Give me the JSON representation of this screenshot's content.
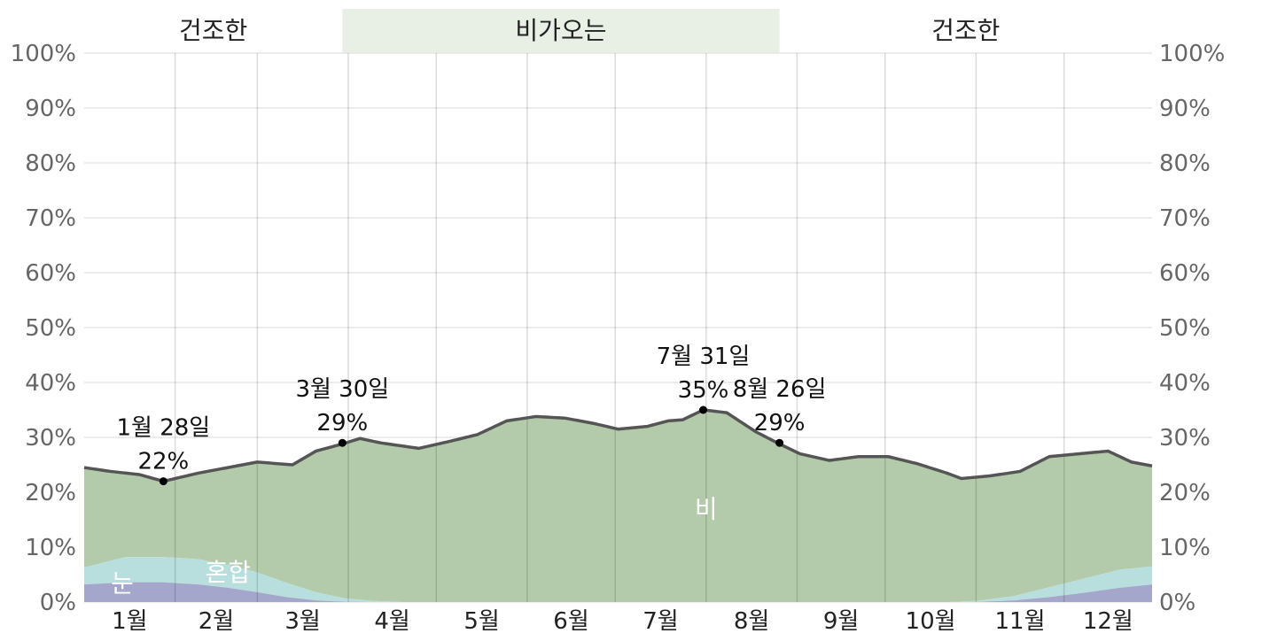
{
  "chart_data": {
    "type": "area",
    "title": "",
    "xlabel": "",
    "ylabel": "",
    "ylim": [
      0,
      100
    ],
    "y_ticks": [
      "0%",
      "10%",
      "20%",
      "30%",
      "40%",
      "50%",
      "60%",
      "70%",
      "80%",
      "90%",
      "100%"
    ],
    "x_ticks": [
      "1월",
      "2월",
      "3월",
      "4월",
      "5월",
      "6월",
      "7월",
      "8월",
      "9월",
      "10월",
      "11월",
      "12월"
    ],
    "grid": true,
    "seasons": [
      {
        "label": "건조한",
        "start_day": 1,
        "end_day": 89,
        "rainy": false
      },
      {
        "label": "비가오는",
        "start_day": 89,
        "end_day": 238,
        "rainy": true
      },
      {
        "label": "건조한",
        "start_day": 238,
        "end_day": 365,
        "rainy": false
      }
    ],
    "series": [
      {
        "name": "눈",
        "color": "#a4a6cc",
        "points": [
          [
            1,
            3.2
          ],
          [
            15,
            3.6
          ],
          [
            28,
            3.6
          ],
          [
            40,
            3.2
          ],
          [
            50,
            2.6
          ],
          [
            60,
            1.8
          ],
          [
            70,
            0.9
          ],
          [
            80,
            0.3
          ],
          [
            90,
            0.05
          ],
          [
            100,
            0
          ],
          [
            305,
            0
          ],
          [
            318,
            0.3
          ],
          [
            330,
            0.9
          ],
          [
            342,
            1.7
          ],
          [
            354,
            2.6
          ],
          [
            365,
            3.2
          ]
        ]
      },
      {
        "name": "혼합",
        "color": "#b8dfdd",
        "points": [
          [
            1,
            3.1
          ],
          [
            15,
            4.6
          ],
          [
            28,
            4.6
          ],
          [
            40,
            4.6
          ],
          [
            50,
            4.2
          ],
          [
            60,
            3.6
          ],
          [
            70,
            2.6
          ],
          [
            80,
            1.5
          ],
          [
            90,
            0.6
          ],
          [
            100,
            0.2
          ],
          [
            110,
            0
          ],
          [
            295,
            0
          ],
          [
            305,
            0.2
          ],
          [
            318,
            0.8
          ],
          [
            330,
            1.8
          ],
          [
            342,
            2.6
          ],
          [
            354,
            3.3
          ],
          [
            365,
            3.3
          ]
        ]
      },
      {
        "name": "비",
        "color": "#b3cbab",
        "points": [
          [
            1,
            24.5
          ],
          [
            10,
            23.8
          ],
          [
            20,
            23.2
          ],
          [
            28,
            22.0
          ],
          [
            40,
            23.5
          ],
          [
            50,
            24.5
          ],
          [
            60,
            25.5
          ],
          [
            72,
            25.0
          ],
          [
            80,
            27.5
          ],
          [
            89,
            28.8
          ],
          [
            95,
            29.8
          ],
          [
            102,
            29.0
          ],
          [
            115,
            28.0
          ],
          [
            125,
            29.2
          ],
          [
            135,
            30.5
          ],
          [
            145,
            33.0
          ],
          [
            155,
            33.8
          ],
          [
            165,
            33.5
          ],
          [
            175,
            32.5
          ],
          [
            183,
            31.5
          ],
          [
            193,
            32.0
          ],
          [
            200,
            33.0
          ],
          [
            205,
            33.2
          ],
          [
            212,
            35.0
          ],
          [
            220,
            34.5
          ],
          [
            230,
            31.0
          ],
          [
            238,
            28.8
          ],
          [
            245,
            27.0
          ],
          [
            255,
            25.8
          ],
          [
            265,
            26.5
          ],
          [
            275,
            26.5
          ],
          [
            285,
            25.2
          ],
          [
            295,
            23.5
          ],
          [
            300,
            22.5
          ],
          [
            310,
            23.0
          ],
          [
            320,
            23.8
          ],
          [
            330,
            26.5
          ],
          [
            340,
            27.0
          ],
          [
            350,
            27.5
          ],
          [
            358,
            25.5
          ],
          [
            365,
            24.8
          ]
        ]
      }
    ],
    "annotations": [
      {
        "day": 28,
        "value": 22,
        "date_label": "1월 28일",
        "value_label": "22%"
      },
      {
        "day": 89,
        "value": 29,
        "date_label": "3월 30일",
        "value_label": "29%"
      },
      {
        "day": 212,
        "value": 35,
        "date_label": "7월 31일",
        "value_label": "35%"
      },
      {
        "day": 238,
        "value": 29,
        "date_label": "8월 26일",
        "value_label": "29%"
      }
    ],
    "area_labels": [
      {
        "text": "비",
        "day": 213,
        "value": 17
      },
      {
        "text": "눈",
        "day": 14,
        "value": 3.5
      },
      {
        "text": "혼합",
        "day": 50,
        "value": 5.5
      }
    ],
    "colors": {
      "total_line": "#555555",
      "rainy_band": "#e8efe5",
      "grid": "#e6e6e6",
      "month_line": "#cccccc"
    }
  }
}
